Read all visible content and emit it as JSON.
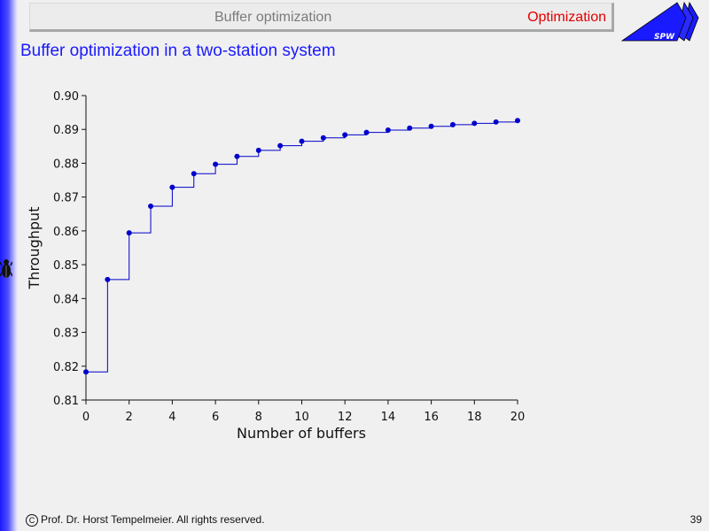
{
  "header": {
    "title": "Buffer optimization",
    "section": "Optimization"
  },
  "logo": {
    "text": "SPW"
  },
  "slide": {
    "title": "Buffer optimization in a two-station system"
  },
  "footer": {
    "copyright_symbol": "C",
    "copyright": "Prof. Dr. Horst Tempelmeier. All rights reserved.",
    "page_number": "39"
  },
  "colors": {
    "accent": "#1a1aff",
    "section": "#e00000",
    "series": "#0000cc"
  },
  "chart_data": {
    "type": "scatter",
    "style": "step-with-points",
    "title": "",
    "xlabel": "Number of buffers",
    "ylabel": "Throughput",
    "xlim": [
      0,
      20
    ],
    "ylim": [
      0.81,
      0.9
    ],
    "xticks": [
      0,
      2,
      4,
      6,
      8,
      10,
      12,
      14,
      16,
      18,
      20
    ],
    "yticks": [
      0.81,
      0.82,
      0.83,
      0.84,
      0.85,
      0.86,
      0.87,
      0.88,
      0.89,
      0.9
    ],
    "ytick_labels": [
      "0.81",
      "0.82",
      "0.83",
      "0.84",
      "0.85",
      "0.86",
      "0.87",
      "0.88",
      "0.89",
      "0.90"
    ],
    "grid": false,
    "x": [
      0,
      1,
      2,
      3,
      4,
      5,
      6,
      7,
      8,
      9,
      10,
      11,
      12,
      13,
      14,
      15,
      16,
      17,
      18,
      19,
      20
    ],
    "y": [
      0.8183,
      0.8456,
      0.8594,
      0.8673,
      0.8729,
      0.8769,
      0.8797,
      0.882,
      0.8838,
      0.8852,
      0.8865,
      0.8875,
      0.8884,
      0.8891,
      0.8898,
      0.8904,
      0.8909,
      0.8914,
      0.8918,
      0.8922,
      0.8926
    ]
  }
}
